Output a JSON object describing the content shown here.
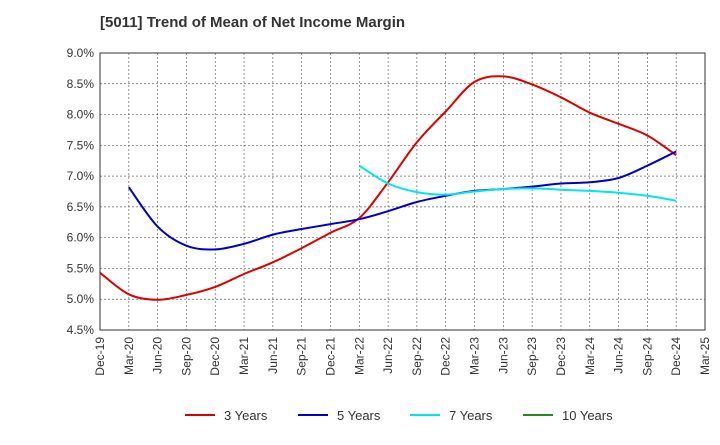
{
  "chart_data": {
    "type": "line",
    "title": "[5011]  Trend of Mean of Net Income Margin",
    "xlabel": "",
    "ylabel": "",
    "ylim": [
      4.5,
      9.0
    ],
    "y_ticks": [
      4.5,
      5.0,
      5.5,
      6.0,
      6.5,
      7.0,
      7.5,
      8.0,
      8.5,
      9.0
    ],
    "y_tick_labels": [
      "4.5%",
      "5.0%",
      "5.5%",
      "6.0%",
      "6.5%",
      "7.0%",
      "7.5%",
      "8.0%",
      "8.5%",
      "9.0%"
    ],
    "x_ticks": [
      "Dec-19",
      "Mar-20",
      "Jun-20",
      "Sep-20",
      "Dec-20",
      "Mar-21",
      "Jun-21",
      "Sep-21",
      "Dec-21",
      "Mar-22",
      "Jun-22",
      "Sep-22",
      "Dec-22",
      "Mar-23",
      "Jun-23",
      "Sep-23",
      "Dec-23",
      "Mar-24",
      "Jun-24",
      "Sep-24",
      "Dec-24",
      "Mar-25"
    ],
    "grid": true,
    "legend_position": "bottom",
    "series": [
      {
        "name": "3 Years",
        "color": "#dd0000",
        "points": [
          [
            "Dec-19",
            5.43
          ],
          [
            "Mar-20",
            5.08
          ],
          [
            "Jun-20",
            4.99
          ],
          [
            "Sep-20",
            5.07
          ],
          [
            "Dec-20",
            5.2
          ],
          [
            "Mar-21",
            5.41
          ],
          [
            "Jun-21",
            5.6
          ],
          [
            "Sep-21",
            5.83
          ],
          [
            "Dec-21",
            6.08
          ],
          [
            "Mar-22",
            6.32
          ],
          [
            "Jun-22",
            6.9
          ],
          [
            "Sep-22",
            7.55
          ],
          [
            "Dec-22",
            8.05
          ],
          [
            "Mar-23",
            8.53
          ],
          [
            "Jun-23",
            8.62
          ],
          [
            "Sep-23",
            8.49
          ],
          [
            "Dec-23",
            8.28
          ],
          [
            "Mar-24",
            8.03
          ],
          [
            "Jun-24",
            7.85
          ],
          [
            "Sep-24",
            7.66
          ],
          [
            "Dec-24",
            7.34
          ]
        ]
      },
      {
        "name": "5 Years",
        "color": "#0000cc",
        "points": [
          [
            "Mar-20",
            6.82
          ],
          [
            "Jun-20",
            6.18
          ],
          [
            "Sep-20",
            5.87
          ],
          [
            "Dec-20",
            5.81
          ],
          [
            "Mar-21",
            5.9
          ],
          [
            "Jun-21",
            6.05
          ],
          [
            "Sep-21",
            6.14
          ],
          [
            "Dec-21",
            6.22
          ],
          [
            "Mar-22",
            6.3
          ],
          [
            "Jun-22",
            6.43
          ],
          [
            "Sep-22",
            6.58
          ],
          [
            "Dec-22",
            6.68
          ],
          [
            "Mar-23",
            6.76
          ],
          [
            "Jun-23",
            6.79
          ],
          [
            "Sep-23",
            6.83
          ],
          [
            "Dec-23",
            6.88
          ],
          [
            "Mar-24",
            6.9
          ],
          [
            "Jun-24",
            6.97
          ],
          [
            "Sep-24",
            7.17
          ],
          [
            "Dec-24",
            7.4
          ]
        ]
      },
      {
        "name": "7 Years",
        "color": "#00e5ee",
        "points": [
          [
            "Mar-22",
            7.17
          ],
          [
            "Jun-22",
            6.88
          ],
          [
            "Sep-22",
            6.74
          ],
          [
            "Dec-22",
            6.7
          ],
          [
            "Mar-23",
            6.75
          ],
          [
            "Jun-23",
            6.79
          ],
          [
            "Sep-23",
            6.8
          ],
          [
            "Dec-23",
            6.78
          ],
          [
            "Mar-24",
            6.76
          ],
          [
            "Jun-24",
            6.73
          ],
          [
            "Sep-24",
            6.68
          ],
          [
            "Dec-24",
            6.6
          ]
        ]
      },
      {
        "name": "10 Years",
        "color": "#228b22",
        "points": []
      }
    ]
  }
}
